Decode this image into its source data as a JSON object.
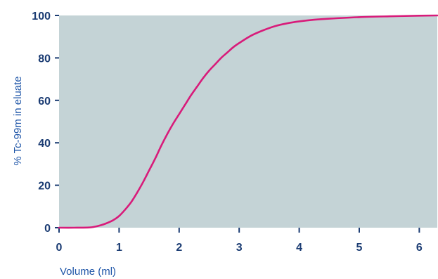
{
  "chart_data": {
    "type": "line",
    "title": "",
    "xlabel": "Volume (ml)",
    "ylabel": "% Tc-99m in eluate",
    "xlim": [
      0,
      6.3
    ],
    "ylim": [
      0,
      100
    ],
    "x_ticks": [
      0,
      1,
      2,
      3,
      4,
      5,
      6
    ],
    "y_ticks": [
      0,
      20,
      40,
      60,
      80,
      100
    ],
    "grid": false,
    "series": [
      {
        "x": [
          0,
          0.25,
          0.5,
          0.6,
          0.7,
          0.8,
          0.9,
          1.0,
          1.1,
          1.2,
          1.3,
          1.4,
          1.5,
          1.6,
          1.7,
          1.8,
          1.9,
          2.0,
          2.1,
          2.2,
          2.3,
          2.4,
          2.5,
          2.6,
          2.7,
          2.8,
          2.9,
          3.0,
          3.2,
          3.4,
          3.6,
          3.8,
          4.0,
          4.25,
          4.5,
          5.0,
          5.5,
          6.0,
          6.3
        ],
        "y": [
          0,
          0,
          0.1,
          0.5,
          1.2,
          2.2,
          3.5,
          5.5,
          8.5,
          12,
          16.5,
          21.5,
          27,
          32.5,
          38.5,
          44,
          49,
          53.5,
          58,
          62.5,
          66.5,
          70.5,
          74,
          77,
          80,
          82.5,
          85,
          87,
          90.5,
          93,
          95,
          96.3,
          97.2,
          98,
          98.5,
          99.2,
          99.6,
          99.9,
          100
        ]
      }
    ]
  },
  "colors": {
    "plot_background": "#c4d3d6",
    "line": "#d81b7a",
    "axis_text": "#1b3c73",
    "axis_title_text": "#1f56a8"
  }
}
